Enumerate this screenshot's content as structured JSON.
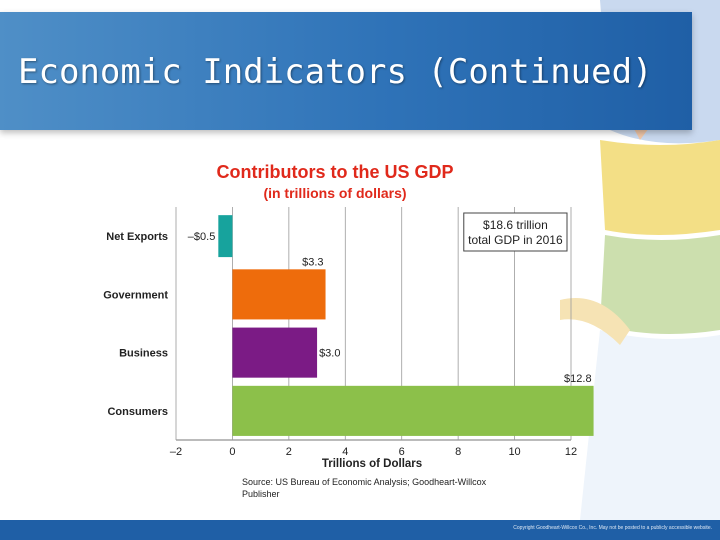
{
  "slide": {
    "title": "Economic Indicators (Continued)",
    "footer": "Copyright Goodheart-Willcox Co., Inc.  May not be posted to a publicly accessible website."
  },
  "colors": {
    "title_bar": "#2f73b8",
    "chart_title": "#e0291b",
    "footer_bar": "#1f5fa6"
  },
  "chart_data": {
    "type": "bar",
    "orientation": "horizontal",
    "title": "Contributors to the US GDP",
    "subtitle": "(in trillions of dollars)",
    "xlabel": "Trillions of Dollars",
    "ylabel": "",
    "xlim": [
      -2,
      12
    ],
    "xticks": [
      -2,
      0,
      2,
      4,
      6,
      8,
      10,
      12
    ],
    "xtick_labels": [
      "–2",
      "0",
      "2",
      "4",
      "6",
      "8",
      "10",
      "12"
    ],
    "grid": "vertical",
    "categories": [
      "Net Exports",
      "Government",
      "Business",
      "Consumers"
    ],
    "values": [
      -0.5,
      3.3,
      3.0,
      12.8
    ],
    "data_labels": [
      "–$0.5",
      "$3.3",
      "$3.0",
      "$12.8"
    ],
    "bar_colors": [
      "#17a39d",
      "#ee6c0c",
      "#7b1b85",
      "#8cc04a"
    ],
    "annotation": "$18.6 trillion\ntotal GDP in 2016",
    "source": "Source: US Bureau of Economic Analysis; Goodheart-Willcox Publisher"
  }
}
